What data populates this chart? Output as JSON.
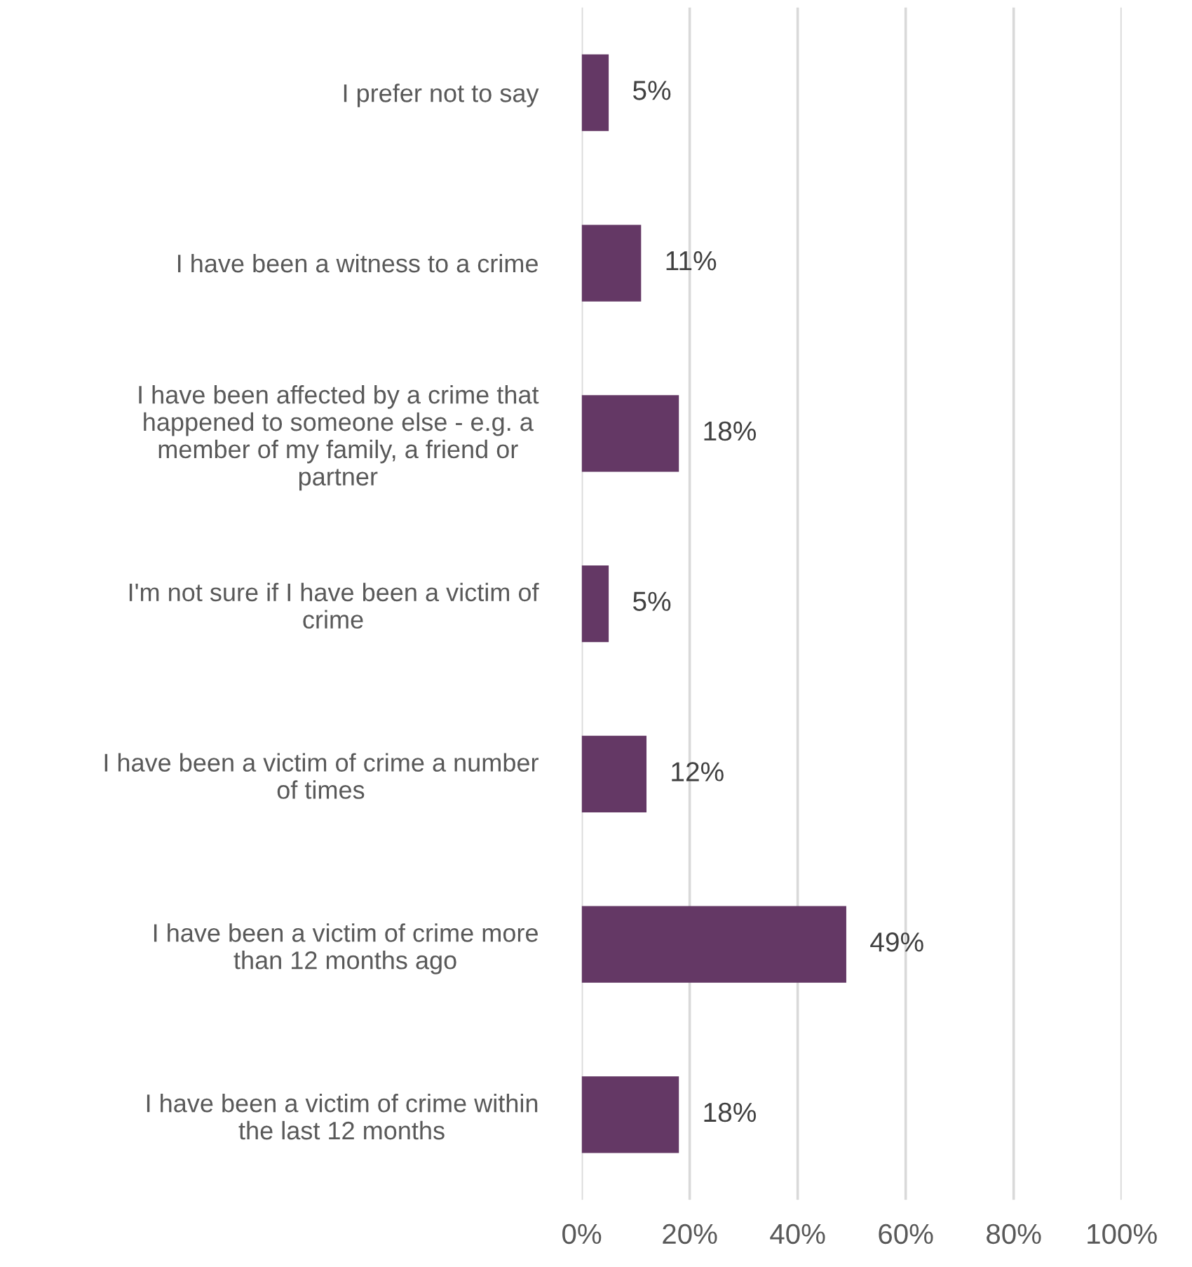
{
  "chart_data": {
    "type": "bar",
    "orientation": "horizontal",
    "categories": [
      "I prefer not to say",
      "I have been a witness to a crime",
      "I have been affected by a crime that\nhappened to someone else - e.g. a\nmember of my family, a friend or\npartner",
      "I'm not sure if I have been a victim of\ncrime",
      "I have been a victim of crime a number\nof times",
      "I have been a victim of crime more\nthan 12 months ago",
      "I have been a victim of crime within\nthe last 12 months"
    ],
    "values": [
      5,
      11,
      18,
      5,
      12,
      49,
      18
    ],
    "value_labels": [
      "5%",
      "11%",
      "18%",
      "5%",
      "12%",
      "49%",
      "18%"
    ],
    "color": "#643865",
    "xlim": [
      0,
      100
    ],
    "xticks": [
      {
        "value": 0,
        "label": "0%"
      },
      {
        "value": 20,
        "label": "20%"
      },
      {
        "value": 40,
        "label": "40%"
      },
      {
        "value": 60,
        "label": "60%"
      },
      {
        "value": 80,
        "label": "80%"
      },
      {
        "value": 100,
        "label": "100%"
      }
    ],
    "grid": "x"
  }
}
